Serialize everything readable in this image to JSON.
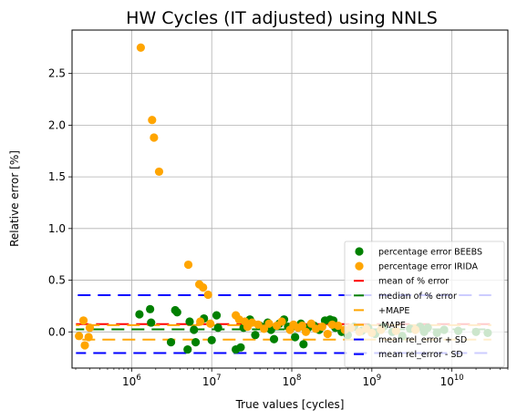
{
  "chart_data": {
    "type": "scatter",
    "title": "HW Cycles (IT adjusted) using NNLS",
    "xlabel": "True values [cycles]",
    "ylabel": "Relative error [%]",
    "xscale": "log",
    "xlim": [
      180000,
      50000000000
    ],
    "ylim": [
      -0.35,
      2.92
    ],
    "grid": true,
    "legend_loc": "lower right",
    "x_ticks": [
      {
        "value": 1000000,
        "base": "10",
        "exp": "6"
      },
      {
        "value": 10000000,
        "base": "10",
        "exp": "7"
      },
      {
        "value": 100000000,
        "base": "10",
        "exp": "8"
      },
      {
        "value": 1000000000,
        "base": "10",
        "exp": "9"
      },
      {
        "value": 10000000000,
        "base": "10",
        "exp": "10"
      }
    ],
    "y_ticks": [
      {
        "value": 2.5,
        "label": "2.5"
      },
      {
        "value": 2.0,
        "label": "2.0"
      },
      {
        "value": 1.5,
        "label": "1.5"
      },
      {
        "value": 1.0,
        "label": "1.0"
      },
      {
        "value": 0.5,
        "label": "0.5"
      },
      {
        "value": 0.0,
        "label": "0.0"
      }
    ],
    "scatter_series": [
      {
        "name": "percentage error BEEBS",
        "color": "#008000",
        "points": [
          [
            5300000,
            0.1
          ],
          [
            1250000,
            0.17
          ],
          [
            1700000,
            0.22
          ],
          [
            1750000,
            0.09
          ],
          [
            3500000,
            0.21
          ],
          [
            3700000,
            0.19
          ],
          [
            3100000,
            -0.1
          ],
          [
            5000000,
            -0.17
          ],
          [
            6000000,
            0.02
          ],
          [
            6300000,
            -0.1
          ],
          [
            8000000,
            0.13
          ],
          [
            10000000,
            -0.08
          ],
          [
            11500000,
            0.16
          ],
          [
            12000000,
            0.04
          ],
          [
            20000000,
            -0.17
          ],
          [
            23000000,
            -0.15
          ],
          [
            25000000,
            0.04
          ],
          [
            30000000,
            0.12
          ],
          [
            35000000,
            -0.03
          ],
          [
            40000000,
            0.06
          ],
          [
            50000000,
            0.09
          ],
          [
            55000000,
            0.02
          ],
          [
            60000000,
            -0.07
          ],
          [
            70000000,
            0.08
          ],
          [
            80000000,
            0.12
          ],
          [
            90000000,
            0.05
          ],
          [
            110000000,
            -0.05
          ],
          [
            130000000,
            0.08
          ],
          [
            140000000,
            -0.12
          ],
          [
            160000000,
            0.04
          ],
          [
            190000000,
            0.06
          ],
          [
            220000000,
            0.02
          ],
          [
            260000000,
            0.11
          ],
          [
            300000000,
            0.12
          ],
          [
            330000000,
            0.11
          ],
          [
            350000000,
            0.04
          ],
          [
            420000000,
            0.0
          ],
          [
            500000000,
            -0.03
          ],
          [
            600000000,
            0.05
          ],
          [
            750000000,
            0.01
          ],
          [
            900000000,
            0.04
          ],
          [
            1100000000,
            -0.02
          ],
          [
            1400000000,
            0.05
          ],
          [
            1800000000,
            0.0
          ],
          [
            2400000000,
            -0.04
          ],
          [
            3000000000,
            0.03
          ],
          [
            4000000000,
            0.05
          ],
          [
            4500000000,
            0.0
          ],
          [
            5000000000,
            0.04
          ],
          [
            6500000000,
            -0.01
          ],
          [
            8000000000,
            0.02
          ],
          [
            12000000000,
            0.01
          ],
          [
            20000000000,
            0.0
          ],
          [
            28000000000,
            -0.01
          ]
        ]
      },
      {
        "name": "percentage error IRIDA",
        "color": "#ffa500",
        "points": [
          [
            1300000,
            2.75
          ],
          [
            1800000,
            2.05
          ],
          [
            1900000,
            1.88
          ],
          [
            2200000,
            1.55
          ],
          [
            5100000,
            0.65
          ],
          [
            7000000,
            0.46
          ],
          [
            7800000,
            0.43
          ],
          [
            9000000,
            0.36
          ],
          [
            220000,
            -0.04
          ],
          [
            250000,
            0.11
          ],
          [
            260000,
            -0.13
          ],
          [
            290000,
            -0.05
          ],
          [
            300000,
            0.04
          ],
          [
            7200000,
            0.1
          ],
          [
            9600000,
            0.08
          ],
          [
            20000000,
            0.16
          ],
          [
            22000000,
            0.12
          ],
          [
            26000000,
            0.1
          ],
          [
            28000000,
            0.05
          ],
          [
            32000000,
            0.09
          ],
          [
            38000000,
            0.07
          ],
          [
            45000000,
            0.03
          ],
          [
            52000000,
            0.08
          ],
          [
            65000000,
            0.06
          ],
          [
            75000000,
            0.1
          ],
          [
            95000000,
            0.02
          ],
          [
            105000000,
            0.07
          ],
          [
            120000000,
            0.04
          ],
          [
            135000000,
            0.06
          ],
          [
            150000000,
            0.0
          ],
          [
            175000000,
            0.08
          ],
          [
            200000000,
            0.03
          ],
          [
            240000000,
            0.05
          ],
          [
            280000000,
            -0.02
          ],
          [
            320000000,
            0.07
          ],
          [
            380000000,
            0.06
          ],
          [
            460000000,
            0.02
          ],
          [
            550000000,
            0.04
          ],
          [
            700000000,
            0.0
          ],
          [
            850000000,
            0.03
          ],
          [
            1000000000,
            -0.01
          ],
          [
            1300000000,
            0.02
          ],
          [
            2000000000,
            0.01
          ],
          [
            3500000000,
            0.02
          ]
        ]
      }
    ],
    "line_series": [
      {
        "name": "mean of % error",
        "color": "#ff0000",
        "value": 0.075
      },
      {
        "name": "median of % error",
        "color": "#008000",
        "value": 0.025
      },
      {
        "name": "+MAPE",
        "color": "#ffa500",
        "value": 0.065
      },
      {
        "name": "-MAPE",
        "color": "#ffa500",
        "value": -0.075
      },
      {
        "name": "mean rel_error + SD",
        "color": "#0000ff",
        "value": 0.355
      },
      {
        "name": "mean rel_error - SD",
        "color": "#0000ff",
        "value": -0.205
      }
    ]
  }
}
